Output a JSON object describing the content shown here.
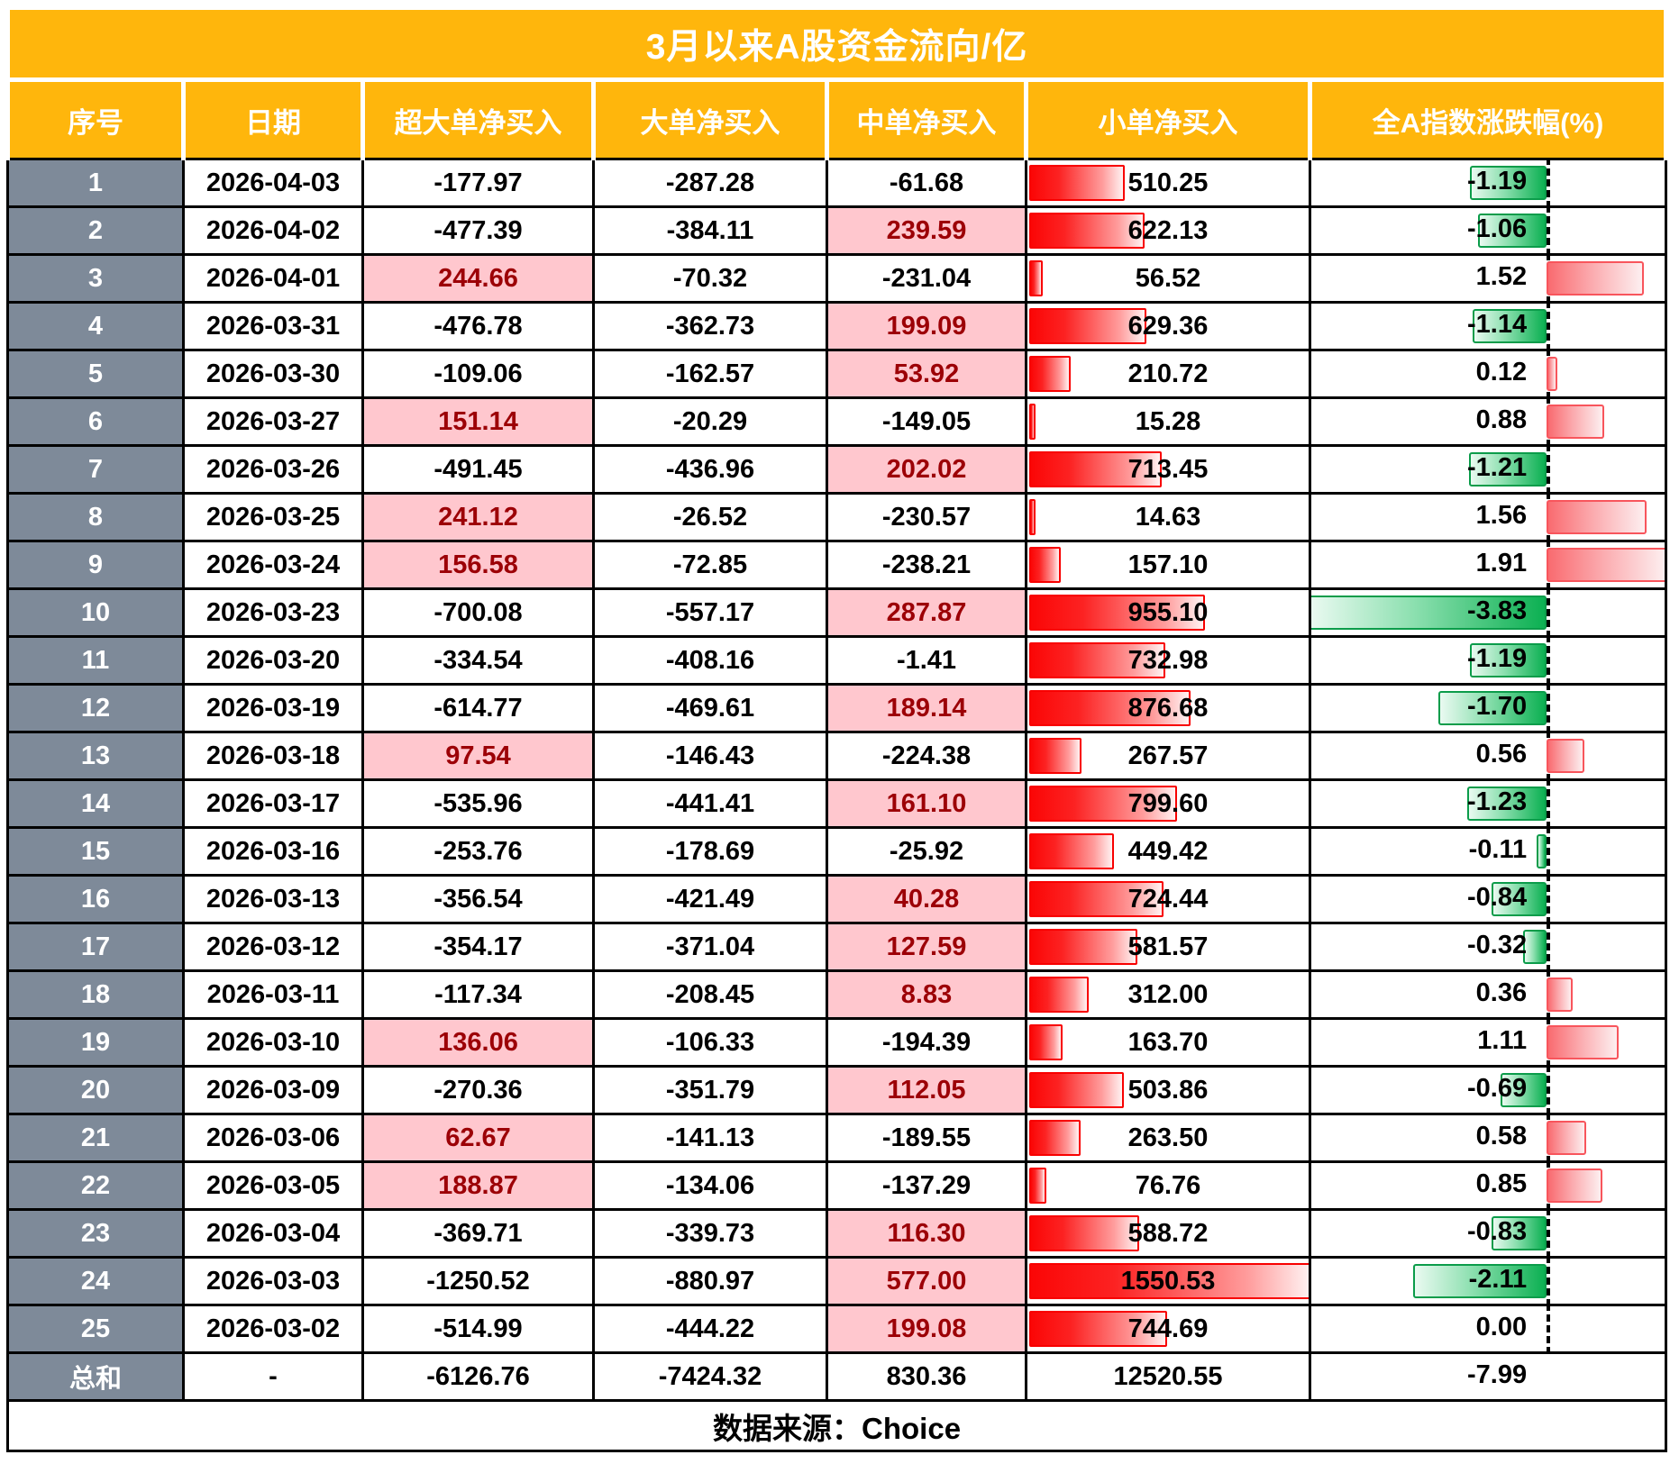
{
  "chart_data": {
    "type": "table",
    "title": "3月以来A股资金流向/亿",
    "columns": [
      "序号",
      "日期",
      "超大单净买入",
      "大单净买入",
      "中单净买入",
      "小单净买入",
      "全A指数涨跌幅(%)"
    ],
    "rows": [
      {
        "seq": "1",
        "date": "2026-04-03",
        "xl": "-177.97",
        "l": "-287.28",
        "m": "-61.68",
        "s": "510.25",
        "pct": "-1.19"
      },
      {
        "seq": "2",
        "date": "2026-04-02",
        "xl": "-477.39",
        "l": "-384.11",
        "m": "239.59",
        "s": "622.13",
        "pct": "-1.06"
      },
      {
        "seq": "3",
        "date": "2026-04-01",
        "xl": "244.66",
        "l": "-70.32",
        "m": "-231.04",
        "s": "56.52",
        "pct": "1.52"
      },
      {
        "seq": "4",
        "date": "2026-03-31",
        "xl": "-476.78",
        "l": "-362.73",
        "m": "199.09",
        "s": "629.36",
        "pct": "-1.14"
      },
      {
        "seq": "5",
        "date": "2026-03-30",
        "xl": "-109.06",
        "l": "-162.57",
        "m": "53.92",
        "s": "210.72",
        "pct": "0.12"
      },
      {
        "seq": "6",
        "date": "2026-03-27",
        "xl": "151.14",
        "l": "-20.29",
        "m": "-149.05",
        "s": "15.28",
        "pct": "0.88"
      },
      {
        "seq": "7",
        "date": "2026-03-26",
        "xl": "-491.45",
        "l": "-436.96",
        "m": "202.02",
        "s": "713.45",
        "pct": "-1.21"
      },
      {
        "seq": "8",
        "date": "2026-03-25",
        "xl": "241.12",
        "l": "-26.52",
        "m": "-230.57",
        "s": "14.63",
        "pct": "1.56"
      },
      {
        "seq": "9",
        "date": "2026-03-24",
        "xl": "156.58",
        "l": "-72.85",
        "m": "-238.21",
        "s": "157.10",
        "pct": "1.91"
      },
      {
        "seq": "10",
        "date": "2026-03-23",
        "xl": "-700.08",
        "l": "-557.17",
        "m": "287.87",
        "s": "955.10",
        "pct": "-3.83"
      },
      {
        "seq": "11",
        "date": "2026-03-20",
        "xl": "-334.54",
        "l": "-408.16",
        "m": "-1.41",
        "s": "732.98",
        "pct": "-1.19"
      },
      {
        "seq": "12",
        "date": "2026-03-19",
        "xl": "-614.77",
        "l": "-469.61",
        "m": "189.14",
        "s": "876.68",
        "pct": "-1.70"
      },
      {
        "seq": "13",
        "date": "2026-03-18",
        "xl": "97.54",
        "l": "-146.43",
        "m": "-224.38",
        "s": "267.57",
        "pct": "0.56"
      },
      {
        "seq": "14",
        "date": "2026-03-17",
        "xl": "-535.96",
        "l": "-441.41",
        "m": "161.10",
        "s": "799.60",
        "pct": "-1.23"
      },
      {
        "seq": "15",
        "date": "2026-03-16",
        "xl": "-253.76",
        "l": "-178.69",
        "m": "-25.92",
        "s": "449.42",
        "pct": "-0.11"
      },
      {
        "seq": "16",
        "date": "2026-03-13",
        "xl": "-356.54",
        "l": "-421.49",
        "m": "40.28",
        "s": "724.44",
        "pct": "-0.84"
      },
      {
        "seq": "17",
        "date": "2026-03-12",
        "xl": "-354.17",
        "l": "-371.04",
        "m": "127.59",
        "s": "581.57",
        "pct": "-0.32"
      },
      {
        "seq": "18",
        "date": "2026-03-11",
        "xl": "-117.34",
        "l": "-208.45",
        "m": "8.83",
        "s": "312.00",
        "pct": "0.36"
      },
      {
        "seq": "19",
        "date": "2026-03-10",
        "xl": "136.06",
        "l": "-106.33",
        "m": "-194.39",
        "s": "163.70",
        "pct": "1.11"
      },
      {
        "seq": "20",
        "date": "2026-03-09",
        "xl": "-270.36",
        "l": "-351.79",
        "m": "112.05",
        "s": "503.86",
        "pct": "-0.69"
      },
      {
        "seq": "21",
        "date": "2026-03-06",
        "xl": "62.67",
        "l": "-141.13",
        "m": "-189.55",
        "s": "263.50",
        "pct": "0.58"
      },
      {
        "seq": "22",
        "date": "2026-03-05",
        "xl": "188.87",
        "l": "-134.06",
        "m": "-137.29",
        "s": "76.76",
        "pct": "0.85"
      },
      {
        "seq": "23",
        "date": "2026-03-04",
        "xl": "-369.71",
        "l": "-339.73",
        "m": "116.30",
        "s": "588.72",
        "pct": "-0.83"
      },
      {
        "seq": "24",
        "date": "2026-03-03",
        "xl": "-1250.52",
        "l": "-880.97",
        "m": "577.00",
        "s": "1550.53",
        "pct": "-2.11"
      },
      {
        "seq": "25",
        "date": "2026-03-02",
        "xl": "-514.99",
        "l": "-444.22",
        "m": "199.08",
        "s": "744.69",
        "pct": "0.00"
      }
    ],
    "total": {
      "seq": "总和",
      "date": "-",
      "xl": "-6126.76",
      "l": "-7424.32",
      "m": "830.36",
      "s": "12520.55",
      "pct": "-7.99"
    },
    "source_note": "数据来源：Choice",
    "layout": {
      "legend": "none",
      "grid": "black 3px cell borders",
      "highlight_positive_columns": [
        "xl",
        "m"
      ],
      "small_bar_axis": "left edge of 小单净买入 column",
      "small_bar_max": 1560,
      "pct_axis_percent": 66.6,
      "pct_scale_total": 5.74,
      "pct_neg_max": -3.83,
      "pct_pos_max": 1.91,
      "colors": {
        "header_bg": "#FFB60C",
        "header_text": "#FFFFFF",
        "seq_column_bg": "#7E8A99",
        "positive_cell_fill": "#FFC7CE",
        "positive_cell_text": "#9C0006",
        "small_order_bar": "#F80000",
        "pct_negative_bar": "#0CB052",
        "pct_positive_bar": "#F8555C"
      }
    }
  }
}
